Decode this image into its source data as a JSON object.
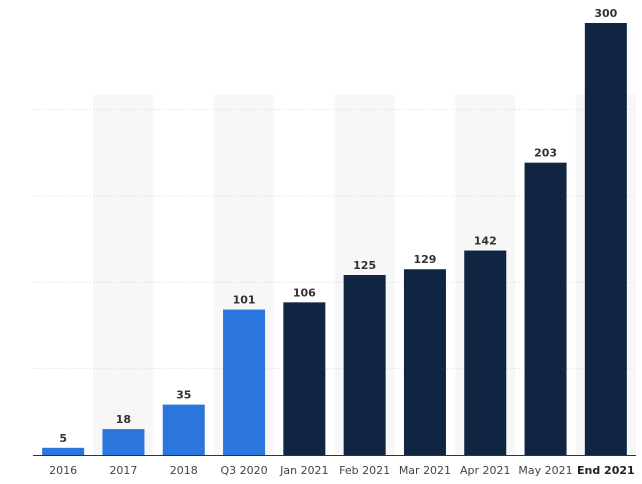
{
  "chart_data": {
    "type": "bar",
    "categories": [
      "2016",
      "2017",
      "2018",
      "Q3 2020",
      "Jan 2021",
      "Feb 2021",
      "Mar 2021",
      "Apr 2021",
      "May 2021",
      "End 2021"
    ],
    "values": [
      5,
      18,
      35,
      101,
      106,
      125,
      129,
      142,
      203,
      300
    ],
    "bar_colors": [
      "#2a76dd",
      "#2a76dd",
      "#2a76dd",
      "#2a76dd",
      "#0f2542",
      "#0f2542",
      "#0f2542",
      "#0f2542",
      "#0f2542",
      "#0f2542"
    ],
    "highlighted_category": "End 2021",
    "title": "",
    "xlabel": "",
    "ylabel": "",
    "ylim": [
      0,
      300
    ],
    "grid": true,
    "alternating_column_shading": true,
    "data_labels": true,
    "legend": "none"
  },
  "colors": {
    "past": "#2a76dd",
    "recent": "#0f2542",
    "grid": "#d9d9d9",
    "band": "#f7f7f7",
    "axis": "#333333"
  }
}
